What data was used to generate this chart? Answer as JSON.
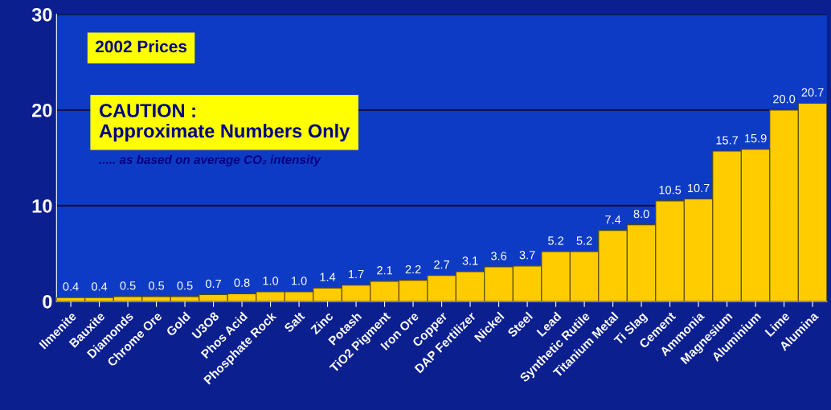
{
  "chart_data": {
    "type": "bar",
    "categories": [
      "Ilmenite",
      "Bauxite",
      "Diamonds",
      "Chrome Ore",
      "Gold",
      "U3O8",
      "Phos Acid",
      "Phosphate Rock",
      "Salt",
      "Zinc",
      "Potash",
      "TiO2 Pigment",
      "Iron Ore",
      "Copper",
      "DAP Fertilizer",
      "Nickel",
      "Steel",
      "Lead",
      "Synthetic Rutile",
      "Titanium Metal",
      "Ti Slag",
      "Cement",
      "Ammonia",
      "Magnesium",
      "Aluminium",
      "Lime",
      "Alumina"
    ],
    "values": [
      0.4,
      0.4,
      0.5,
      0.5,
      0.5,
      0.7,
      0.8,
      1.0,
      1.0,
      1.4,
      1.7,
      2.1,
      2.2,
      2.7,
      3.1,
      3.6,
      3.7,
      5.2,
      5.2,
      7.4,
      8.0,
      10.5,
      10.7,
      15.7,
      15.9,
      20.0,
      20.7
    ],
    "color": "#ffcc00",
    "value_labels": [
      "0.4",
      "0.4",
      "0.5",
      "0.5",
      "0.5",
      "0.7",
      "0.8",
      "1.0",
      "1.0",
      "1.4",
      "1.7",
      "2.1",
      "2.2",
      "2.7",
      "3.1",
      "3.6",
      "3.7",
      "5.2",
      "5.2",
      "7.4",
      "8.0",
      "10.5",
      "10.7",
      "15.7",
      "15.9",
      "20.0",
      "20.7"
    ],
    "ylim": [
      0,
      30
    ],
    "yticks": [
      0,
      10,
      20,
      30
    ],
    "grid": "y",
    "annotations": [
      "2002 Prices",
      "CAUTION :\nApproximate Numbers Only",
      "..... as based on average CO₂ intensity"
    ]
  }
}
